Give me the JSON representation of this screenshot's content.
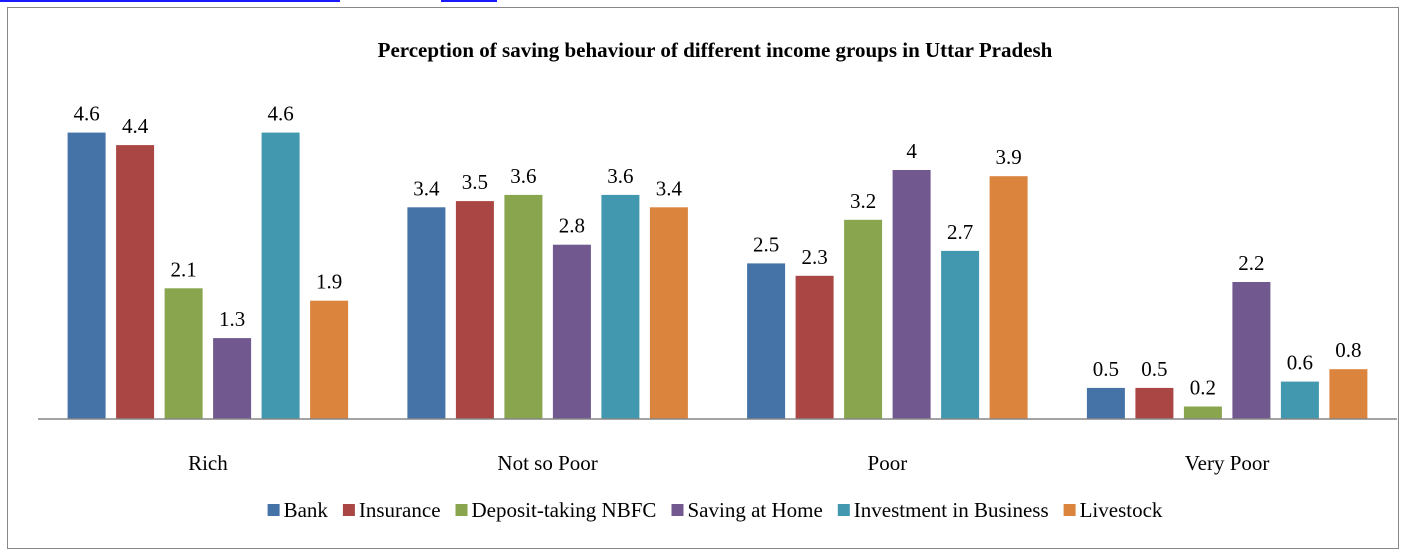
{
  "chart_data": {
    "type": "bar",
    "title": "Perception of saving behaviour of different income groups in Uttar Pradesh",
    "xlabel": "",
    "ylabel": "",
    "categories": [
      "Rich",
      "Not so Poor",
      "Poor",
      "Very Poor"
    ],
    "ylim": [
      0,
      5
    ],
    "grid": false,
    "legend_position": "bottom",
    "series": [
      {
        "name": "Bank",
        "color": "#4572a7",
        "values": [
          4.6,
          3.4,
          2.5,
          0.5
        ]
      },
      {
        "name": "Insurance",
        "color": "#aa4643",
        "values": [
          4.4,
          3.5,
          2.3,
          0.5
        ]
      },
      {
        "name": "Deposit-taking NBFC",
        "color": "#89a54e",
        "values": [
          2.1,
          3.6,
          3.2,
          0.2
        ]
      },
      {
        "name": "Saving at Home",
        "color": "#71588f",
        "values": [
          1.3,
          2.8,
          4,
          2.2
        ]
      },
      {
        "name": "Investment in Business",
        "color": "#4198af",
        "values": [
          4.6,
          3.6,
          2.7,
          0.6
        ]
      },
      {
        "name": "Livestock",
        "color": "#db843d",
        "values": [
          1.9,
          3.4,
          3.9,
          0.8
        ]
      }
    ]
  }
}
